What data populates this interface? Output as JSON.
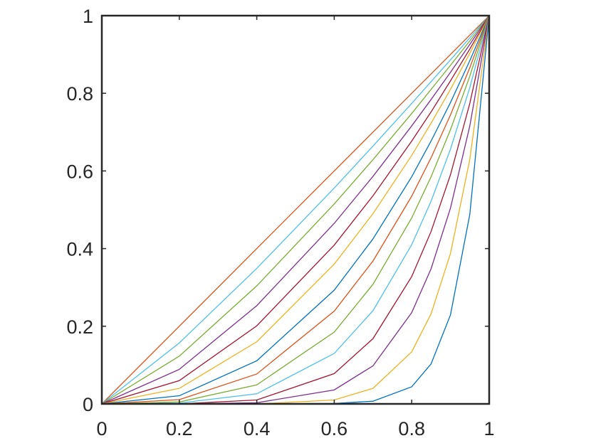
{
  "chart_data": {
    "type": "line",
    "x": [
      0,
      0.2,
      0.4,
      0.6,
      0.7,
      0.8,
      0.85,
      0.9,
      0.95,
      1
    ],
    "series": [
      {
        "color": "#D95319",
        "values": [
          0,
          0.2,
          0.4,
          0.6,
          0.7,
          0.8,
          0.85,
          0.9,
          0.95,
          1
        ]
      },
      {
        "color": "#4DBEEE",
        "values": [
          0,
          0.157,
          0.349,
          0.556,
          0.664,
          0.774,
          0.83,
          0.886,
          0.943,
          1
        ]
      },
      {
        "color": "#77AC30",
        "values": [
          0,
          0.123,
          0.304,
          0.515,
          0.629,
          0.748,
          0.81,
          0.872,
          0.935,
          1
        ]
      },
      {
        "color": "#7E2F8E",
        "values": [
          0,
          0.089,
          0.253,
          0.465,
          0.586,
          0.716,
          0.784,
          0.854,
          0.926,
          1
        ]
      },
      {
        "color": "#A2142F",
        "values": [
          0,
          0.06,
          0.201,
          0.409,
          0.536,
          0.677,
          0.752,
          0.832,
          0.914,
          1
        ]
      },
      {
        "color": "#EDB120",
        "values": [
          0,
          0.04,
          0.16,
          0.36,
          0.49,
          0.64,
          0.723,
          0.81,
          0.903,
          1
        ]
      },
      {
        "color": "#0072BD",
        "values": [
          0,
          0.021,
          0.111,
          0.293,
          0.425,
          0.585,
          0.677,
          0.776,
          0.884,
          1
        ]
      },
      {
        "color": "#D95319",
        "values": [
          0,
          0.011,
          0.077,
          0.239,
          0.368,
          0.535,
          0.634,
          0.744,
          0.866,
          1
        ]
      },
      {
        "color": "#77AC30",
        "values": [
          0,
          0.005,
          0.049,
          0.185,
          0.308,
          0.479,
          0.585,
          0.706,
          0.844,
          1
        ]
      },
      {
        "color": "#4DBEEE",
        "values": [
          0,
          0.002,
          0.026,
          0.13,
          0.24,
          0.41,
          0.522,
          0.656,
          0.815,
          1
        ]
      },
      {
        "color": "#A2142F",
        "values": [
          0,
          0,
          0.01,
          0.078,
          0.168,
          0.328,
          0.444,
          0.59,
          0.774,
          1
        ]
      },
      {
        "color": "#7E2F8E",
        "values": [
          0,
          0,
          0.003,
          0.036,
          0.098,
          0.235,
          0.348,
          0.504,
          0.716,
          1
        ]
      },
      {
        "color": "#EDB120",
        "values": [
          0,
          0,
          0,
          0.01,
          0.04,
          0.134,
          0.232,
          0.387,
          0.63,
          1
        ]
      },
      {
        "color": "#0072BD",
        "values": [
          0,
          0,
          0,
          0.001,
          0.007,
          0.044,
          0.103,
          0.229,
          0.488,
          1
        ]
      }
    ],
    "xlim": [
      0,
      1
    ],
    "ylim": [
      0,
      1
    ],
    "xticks": [
      0,
      0.2,
      0.4,
      0.6,
      0.8,
      1
    ],
    "yticks": [
      0,
      0.2,
      0.4,
      0.6,
      0.8,
      1
    ]
  }
}
